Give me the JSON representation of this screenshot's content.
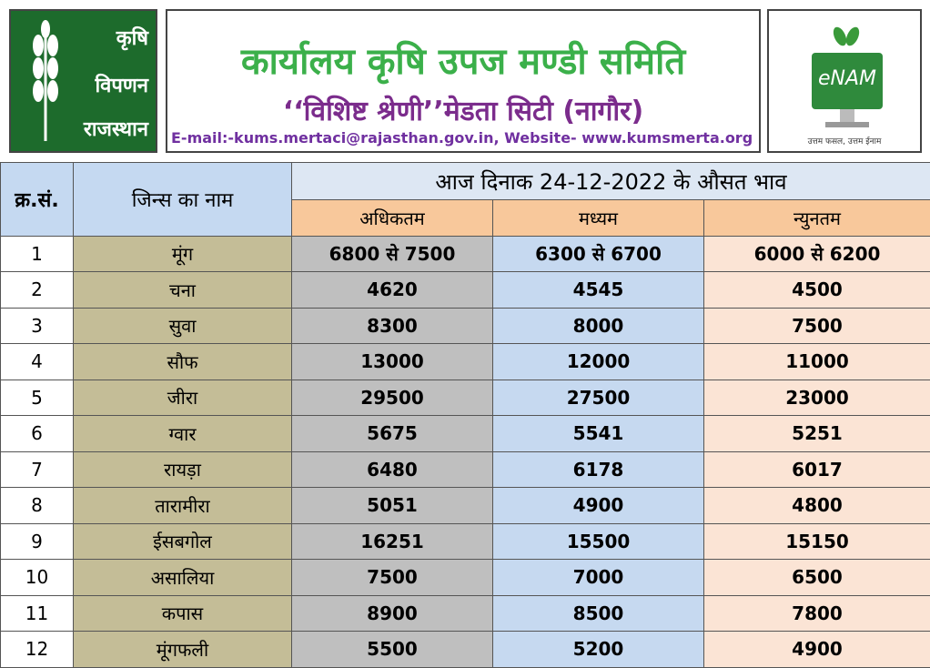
{
  "header": {
    "logo_left": [
      "कृषि",
      "विपणन",
      "राजस्थान"
    ],
    "title": "कार्यालय कृषि उपज मण्डी समिति",
    "subtitle": "‘‘विशिष्ट श्रेणी’’मेडता सिटी (नागौर)",
    "contact": "E-mail:-kums.mertaci@rajasthan.gov.in, Website- www.kumsmerta.org",
    "logo_right": "eNAM",
    "logo_right_tagline": "उत्तम फसल, उत्तम ईनाम"
  },
  "table": {
    "col_serial": "क्र.सं.",
    "col_name": "जिन्स का नाम",
    "date_heading": "आज दिनाक 24-12-2022 के औसत भाव",
    "price_columns": [
      "अधिकतम",
      "मध्यम",
      "न्युनतम"
    ],
    "rows": [
      [
        "1",
        "मूंग",
        "6800 से 7500",
        "6300 से 6700",
        "6000 से 6200"
      ],
      [
        "2",
        "चना",
        "4620",
        "4545",
        "4500"
      ],
      [
        "3",
        "सुवा",
        "8300",
        "8000",
        "7500"
      ],
      [
        "4",
        "सौफ",
        "13000",
        "12000",
        "11000"
      ],
      [
        "5",
        "जीरा",
        "29500",
        "27500",
        "23000"
      ],
      [
        "6",
        "ग्वार",
        "5675",
        "5541",
        "5251"
      ],
      [
        "7",
        "रायड़ा",
        "6480",
        "6178",
        "6017"
      ],
      [
        "8",
        "तारामीरा",
        "5051",
        "4900",
        "4800"
      ],
      [
        "9",
        "ईसबगोल",
        "16251",
        "15500",
        "15150"
      ],
      [
        "10",
        "असालिया",
        "7500",
        "7000",
        "6500"
      ],
      [
        "11",
        "कपास",
        "8900",
        "8500",
        "7800"
      ],
      [
        "12",
        "मूंगफली",
        "5500",
        "5200",
        "4900"
      ]
    ]
  }
}
